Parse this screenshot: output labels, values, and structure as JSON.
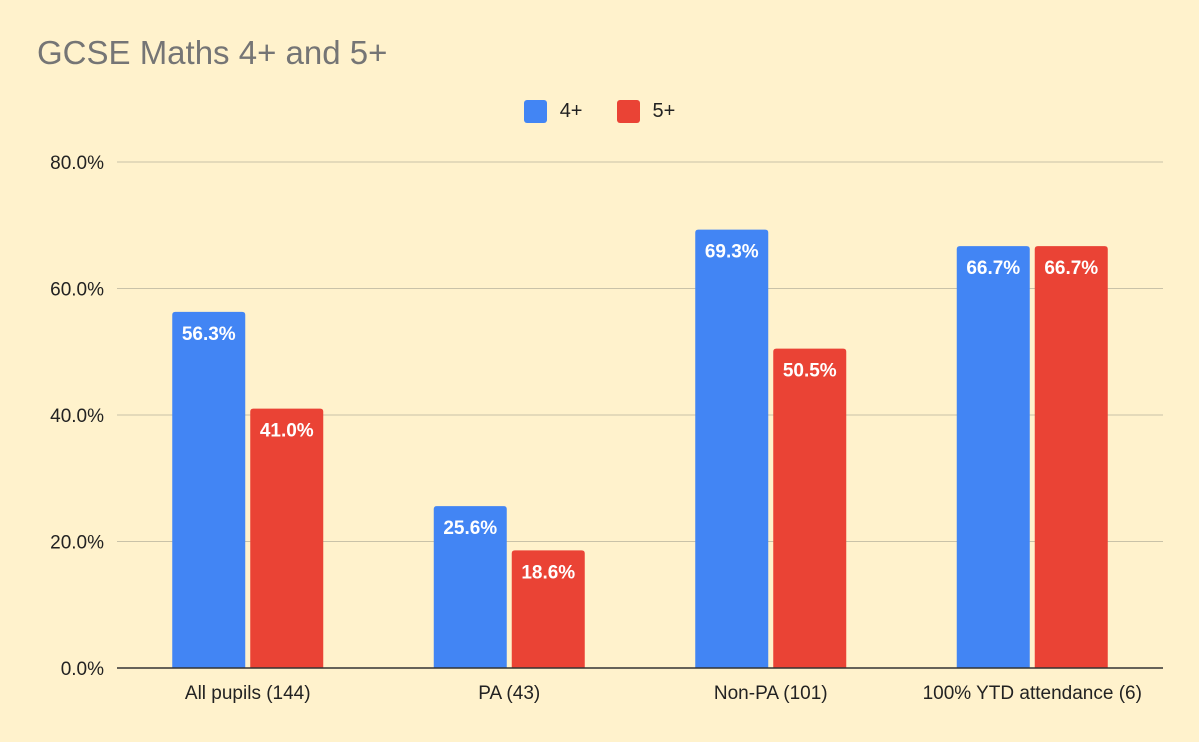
{
  "chart_data": {
    "type": "bar",
    "title": "GCSE Maths 4+ and 5+",
    "categories": [
      "All pupils (144)",
      "PA (43)",
      "Non-PA (101)",
      "100% YTD attendance (6)"
    ],
    "series": [
      {
        "name": "4+",
        "color": "#4285f4",
        "values": [
          56.3,
          25.6,
          69.3,
          66.7
        ]
      },
      {
        "name": "5+",
        "color": "#ea4335",
        "values": [
          41.0,
          18.6,
          50.5,
          66.7
        ]
      }
    ],
    "data_labels": [
      [
        "56.3%",
        "25.6%",
        "69.3%",
        "66.7%"
      ],
      [
        "41.0%",
        "18.6%",
        "50.5%",
        "66.7%"
      ]
    ],
    "ylim": [
      0,
      80
    ],
    "yticks": [
      {
        "value": 0,
        "label": "0.0%"
      },
      {
        "value": 20,
        "label": "20.0%"
      },
      {
        "value": 40,
        "label": "40.0%"
      },
      {
        "value": 60,
        "label": "60.0%"
      },
      {
        "value": 80,
        "label": "80.0%"
      }
    ],
    "xlabel": "",
    "ylabel": "",
    "grid": true,
    "legend_position": "top-center",
    "background": "#fff2cc"
  }
}
